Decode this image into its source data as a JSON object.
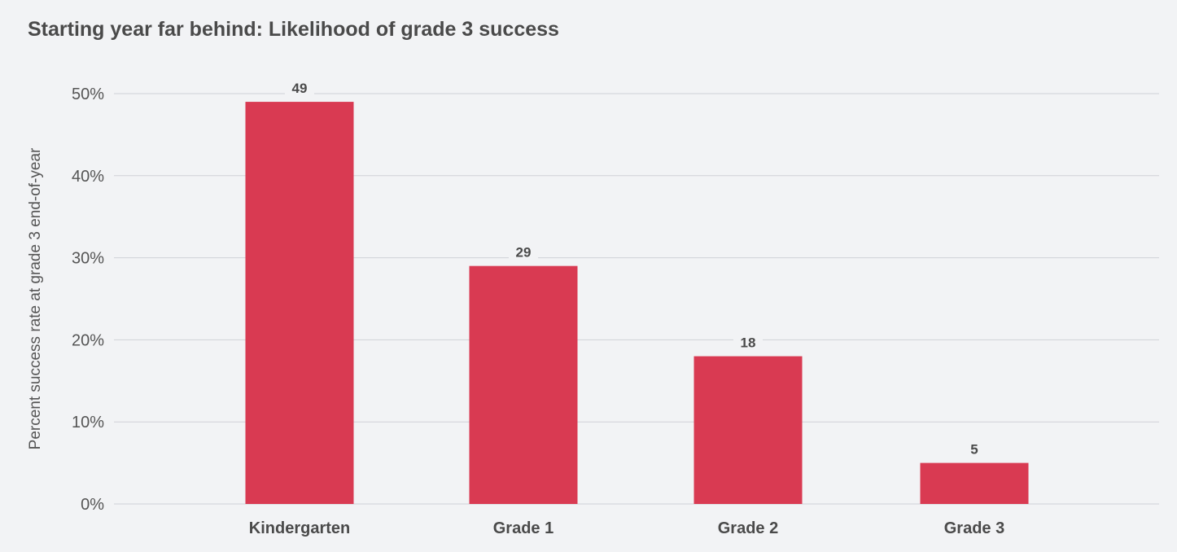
{
  "chart_data": {
    "type": "bar",
    "title": "Starting year far behind: Likelihood of grade 3 success",
    "xlabel": "",
    "ylabel": "Percent success rate at grade 3 end-of-year",
    "categories": [
      "Kindergarten",
      "Grade 1",
      "Grade 2",
      "Grade 3"
    ],
    "values": [
      49,
      29,
      18,
      5
    ],
    "data_labels": [
      "49",
      "29",
      "18",
      "5"
    ],
    "ylim": [
      0,
      50
    ],
    "yticks": [
      0,
      10,
      20,
      30,
      40,
      50
    ],
    "ytick_labels": [
      "0%",
      "10%",
      "20%",
      "30%",
      "40%",
      "50%"
    ],
    "grid": true,
    "legend": "none",
    "colors": {
      "bar": "#d93a52",
      "grid": "#cfd2d7",
      "background": "#f2f3f5"
    }
  }
}
